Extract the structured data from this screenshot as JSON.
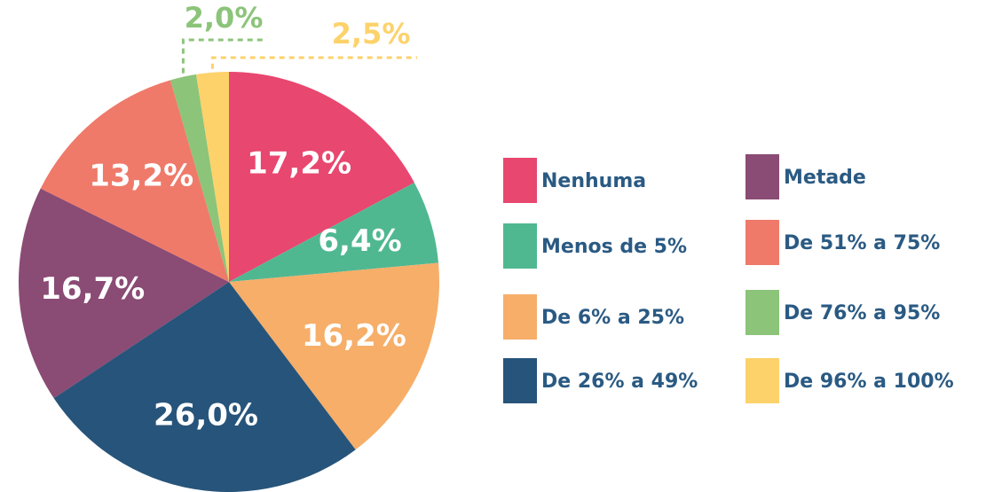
{
  "chart_data": {
    "type": "pie",
    "categories": [
      "Nenhuma",
      "Menos de 5%",
      "De 6% a 25%",
      "De 26% a 49%",
      "Metade",
      "De 51% a 75%",
      "De 76% a 95%",
      "De 96% a 100%"
    ],
    "values": [
      17.2,
      6.4,
      16.2,
      26.0,
      16.7,
      13.2,
      2.0,
      2.5
    ],
    "value_labels": [
      "17,2%",
      "6,4%",
      "16,2%",
      "26,0%",
      "16,7%",
      "13,2%",
      "2,0%",
      "2,5%"
    ],
    "colors": [
      "#e8476f",
      "#50b891",
      "#f6ae69",
      "#27547a",
      "#8a4b74",
      "#ef7a6a",
      "#8cc47a",
      "#fdd26b"
    ]
  }
}
